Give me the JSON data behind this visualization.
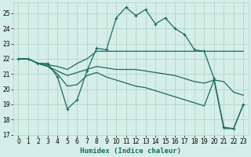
{
  "xlabel": "Humidex (Indice chaleur)",
  "xlim": [
    -0.5,
    23.5
  ],
  "ylim": [
    17,
    25.7
  ],
  "yticks": [
    17,
    18,
    19,
    20,
    21,
    22,
    23,
    24,
    25
  ],
  "xticks": [
    0,
    1,
    2,
    3,
    4,
    5,
    6,
    7,
    8,
    9,
    10,
    11,
    12,
    13,
    14,
    15,
    16,
    17,
    18,
    19,
    20,
    21,
    22,
    23
  ],
  "bg_color": "#d5eee8",
  "grid_color": "#b8d8cc",
  "line_color": "#1a6b5e",
  "line1_y": [
    22.0,
    22.0,
    21.7,
    21.7,
    20.8,
    18.7,
    19.3,
    21.2,
    22.7,
    22.6,
    24.7,
    25.4,
    24.85,
    25.25,
    24.3,
    24.7,
    24.0,
    23.6,
    22.6,
    22.5,
    20.7,
    17.5,
    17.4,
    19.0
  ],
  "line2_y": [
    22.0,
    22.0,
    21.7,
    21.6,
    21.5,
    21.3,
    21.7,
    22.0,
    22.5,
    22.5,
    22.5,
    22.5,
    22.5,
    22.5,
    22.5,
    22.5,
    22.5,
    22.5,
    22.5,
    22.5,
    22.5,
    22.5,
    22.5,
    22.5
  ],
  "line3_y": [
    22.0,
    22.0,
    21.7,
    21.5,
    21.2,
    20.9,
    21.1,
    21.3,
    21.5,
    21.4,
    21.3,
    21.3,
    21.3,
    21.2,
    21.1,
    21.0,
    20.9,
    20.7,
    20.5,
    20.4,
    20.6,
    20.5,
    19.8,
    19.6
  ],
  "line4_y": [
    22.0,
    22.0,
    21.7,
    21.5,
    21.0,
    20.2,
    20.3,
    20.9,
    21.1,
    20.8,
    20.6,
    20.4,
    20.2,
    20.1,
    19.9,
    19.7,
    19.5,
    19.3,
    19.1,
    18.9,
    20.6,
    17.4,
    17.4,
    19.0
  ]
}
